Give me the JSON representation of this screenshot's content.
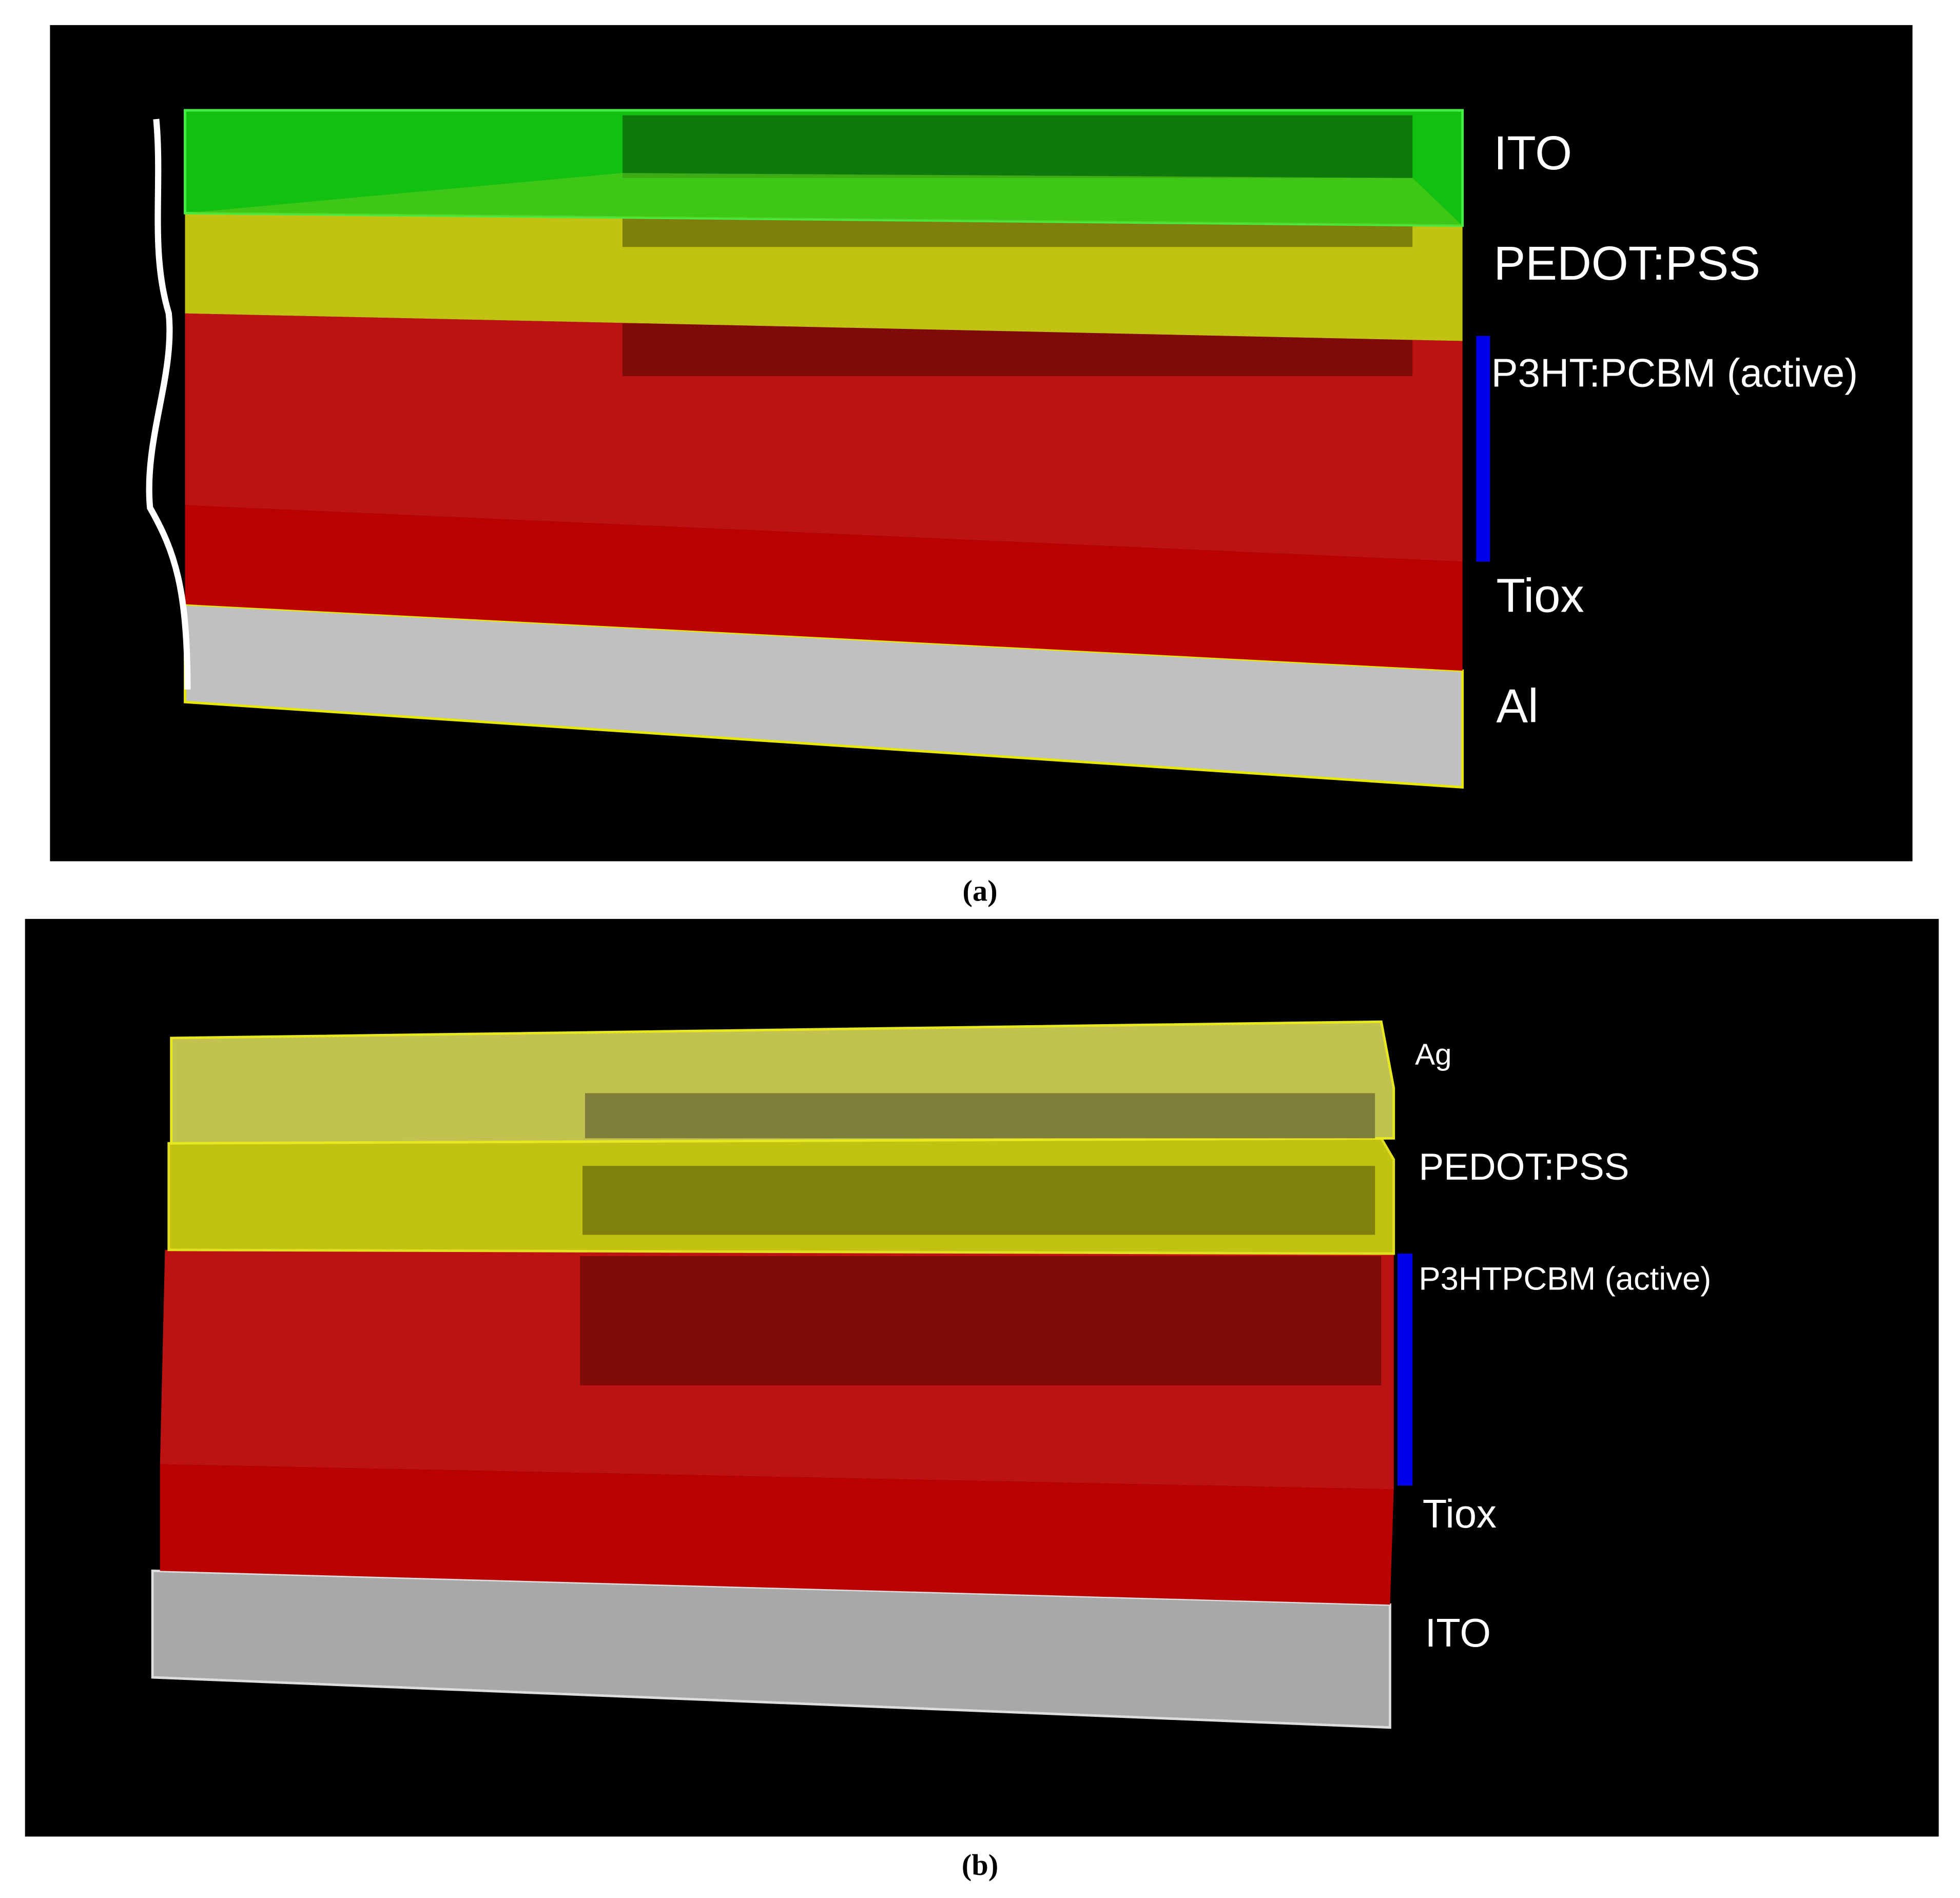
{
  "panels": [
    {
      "caption": "(a)",
      "layers": [
        "ITO",
        "PEDOT:PSS",
        "P3HT:PCBM (active)",
        "Tiox",
        "Al"
      ]
    },
    {
      "caption": "(b)",
      "layers": [
        "Ag",
        "PEDOT:PSS",
        "P3HTPCBM (active)",
        "Tiox",
        "ITO"
      ]
    }
  ]
}
